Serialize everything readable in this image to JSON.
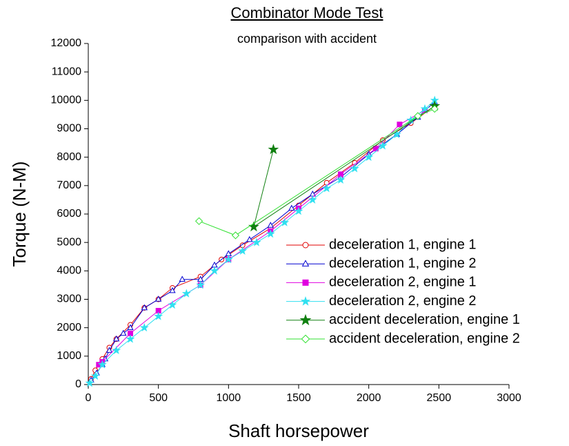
{
  "chart_data": {
    "type": "line",
    "title": "Combinator Mode Test",
    "subtitle": "comparison with accident",
    "xlabel": "Shaft horsepower",
    "ylabel": "Torque (N-M)",
    "xlim": [
      0,
      3000
    ],
    "ylim": [
      0,
      12000
    ],
    "xticks": [
      0,
      500,
      1000,
      1500,
      2000,
      2500,
      3000
    ],
    "yticks": [
      0,
      1000,
      2000,
      3000,
      4000,
      5000,
      6000,
      7000,
      8000,
      9000,
      10000,
      11000,
      12000
    ],
    "grid": false,
    "legend": "lower right",
    "series": [
      {
        "name": "deceleration 1, engine 1",
        "color": "#e00000",
        "marker": "circle",
        "filled": false,
        "x": [
          2470,
          2300,
          2100,
          1900,
          1700,
          1500,
          1300,
          1100,
          950,
          800,
          600,
          500,
          400,
          300,
          200,
          150,
          100,
          50,
          20
        ],
        "values": [
          9800,
          9200,
          8600,
          7800,
          7100,
          6300,
          5500,
          4900,
          4400,
          3800,
          3400,
          3000,
          2700,
          2100,
          1600,
          1300,
          900,
          500,
          200
        ]
      },
      {
        "name": "deceleration 1, engine 2",
        "color": "#0000d0",
        "marker": "triangle",
        "filled": false,
        "x": [
          2470,
          2350,
          2200,
          2000,
          1800,
          1600,
          1450,
          1300,
          1150,
          1000,
          900,
          800,
          670,
          600,
          500,
          400,
          300,
          250,
          200,
          150,
          120,
          100,
          60,
          20
        ],
        "values": [
          9950,
          9400,
          8800,
          8100,
          7300,
          6700,
          6200,
          5600,
          5100,
          4600,
          4200,
          3700,
          3700,
          3300,
          3000,
          2700,
          2000,
          1800,
          1600,
          1200,
          900,
          700,
          400,
          150
        ]
      },
      {
        "name": "deceleration 2, engine 1",
        "color": "#e000e0",
        "marker": "square",
        "filled": true,
        "x": [
          2400,
          2220,
          2050,
          1800,
          1500,
          1300,
          1000,
          800,
          500,
          300,
          100,
          75
        ],
        "values": [
          9650,
          9150,
          8300,
          7400,
          6200,
          5400,
          4400,
          3500,
          2600,
          1800,
          800,
          700
        ]
      },
      {
        "name": "deceleration 2, engine 2",
        "color": "#30e0f0",
        "marker": "star",
        "filled": true,
        "x": [
          2470,
          2400,
          2300,
          2200,
          2100,
          2000,
          1900,
          1800,
          1700,
          1600,
          1500,
          1400,
          1300,
          1200,
          1100,
          1000,
          900,
          800,
          700,
          600,
          500,
          400,
          300,
          200,
          100,
          50,
          10
        ],
        "values": [
          10000,
          9700,
          9300,
          8800,
          8400,
          8000,
          7600,
          7200,
          6900,
          6500,
          6100,
          5700,
          5300,
          5000,
          4700,
          4400,
          4000,
          3500,
          3200,
          2800,
          2400,
          2000,
          1600,
          1200,
          700,
          300,
          50
        ]
      },
      {
        "name": "accident deceleration, engine 1",
        "color": "#108010",
        "marker": "star",
        "filled": true,
        "x": [
          2470,
          1180,
          1320
        ],
        "values": [
          9800,
          5550,
          8270
        ]
      },
      {
        "name": "accident deceleration, engine 2",
        "color": "#30e030",
        "marker": "diamond",
        "filled": false,
        "x": [
          2470,
          2350,
          1050,
          790
        ],
        "values": [
          9700,
          9450,
          5250,
          5750
        ]
      }
    ]
  }
}
